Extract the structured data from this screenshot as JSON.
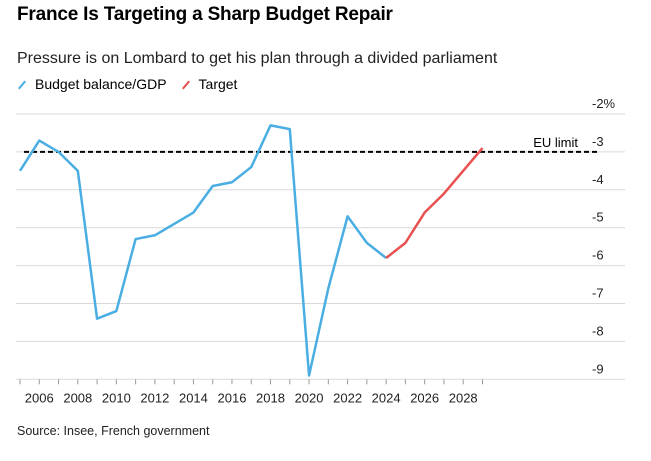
{
  "title": "France Is Targeting a Sharp Budget Repair",
  "subtitle": "Pressure is on Lombard to get his plan through a divided parliament",
  "source": "Source: Insee, French government",
  "chart_data": {
    "type": "line",
    "title": "France Is Targeting a Sharp Budget Repair",
    "ylabel": "",
    "xlabel": "",
    "xlim": [
      2005,
      2029
    ],
    "ylim": [
      -9,
      -2
    ],
    "yticks": [
      -2,
      -3,
      -4,
      -5,
      -6,
      -7,
      -8,
      -9
    ],
    "ytick_labels": [
      "-2%",
      "-3",
      "-4",
      "-5",
      "-6",
      "-7",
      "-8",
      "-9"
    ],
    "xticks": [
      2006,
      2008,
      2010,
      2012,
      2014,
      2016,
      2018,
      2020,
      2022,
      2024,
      2026,
      2028
    ],
    "grid": true,
    "legend_position": "top-left",
    "series": [
      {
        "name": "Budget balance/GDP",
        "color": "#4aaee3",
        "x": [
          2005,
          2006,
          2007,
          2008,
          2009,
          2010,
          2011,
          2012,
          2013,
          2014,
          2015,
          2016,
          2017,
          2018,
          2019,
          2020,
          2021,
          2022,
          2023,
          2024
        ],
        "values": [
          -3.5,
          -2.7,
          -3.0,
          -3.5,
          -7.4,
          -7.2,
          -5.3,
          -5.2,
          -4.9,
          -4.6,
          -3.9,
          -3.8,
          -3.4,
          -2.3,
          -2.4,
          -8.9,
          -6.6,
          -4.7,
          -5.4,
          -5.8
        ]
      },
      {
        "name": "Target",
        "color": "#e8514f",
        "x": [
          2024,
          2025,
          2026,
          2027,
          2028,
          2029
        ],
        "values": [
          -5.8,
          -5.4,
          -4.6,
          -4.1,
          -3.5,
          -2.9
        ]
      }
    ],
    "annotations": [
      {
        "label": "EU limit",
        "y": -3,
        "style": "dashed",
        "color": "#000000"
      }
    ]
  }
}
